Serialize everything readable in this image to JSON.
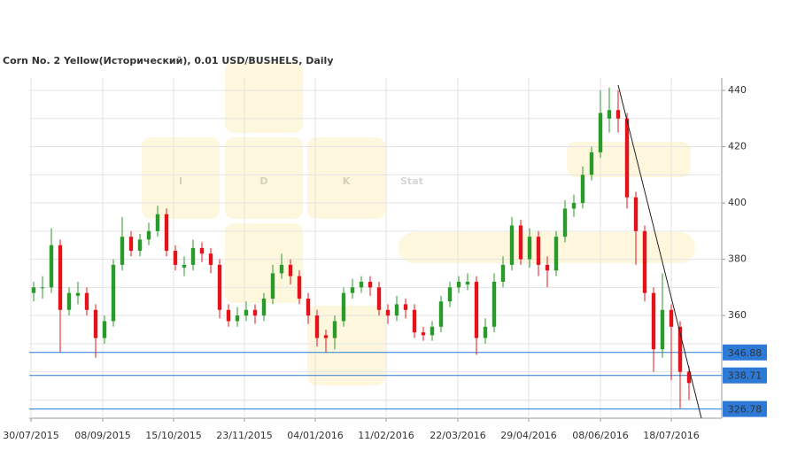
{
  "chart_data": {
    "type": "candlestick",
    "title": "Corn  No. 2 Yellow(Исторический), 0.01 USD/BUSHELS, Daily",
    "watermark_letters": [
      "I",
      "D",
      "K"
    ],
    "watermark_word": "Stat",
    "open": [
      368,
      370,
      370,
      385,
      362,
      367,
      368,
      362,
      352,
      358,
      378,
      388,
      383,
      387,
      390,
      396,
      383,
      377,
      378,
      384,
      382,
      378,
      362,
      358,
      360,
      362,
      360,
      366,
      375,
      378,
      374,
      366,
      360,
      353,
      352,
      358,
      368,
      370,
      372,
      370,
      362,
      360,
      364,
      362,
      354,
      353,
      356,
      365,
      370,
      371,
      372,
      352,
      356,
      372,
      378,
      392,
      380,
      388,
      378,
      376,
      388,
      398,
      400,
      410,
      418,
      430,
      433,
      430,
      402,
      390,
      368,
      348,
      362,
      356,
      340
    ],
    "high": [
      372,
      374,
      391,
      387,
      370,
      372,
      370,
      364,
      360,
      380,
      395,
      390,
      389,
      393,
      399,
      398,
      385,
      381,
      387,
      386,
      384,
      380,
      364,
      363,
      365,
      364,
      368,
      378,
      382,
      380,
      376,
      368,
      362,
      355,
      360,
      370,
      373,
      374,
      374,
      372,
      364,
      367,
      366,
      364,
      356,
      358,
      367,
      372,
      374,
      375,
      374,
      359,
      375,
      381,
      395,
      394,
      391,
      390,
      381,
      390,
      401,
      403,
      413,
      420,
      440,
      441,
      440,
      432,
      404,
      392,
      370,
      375,
      364,
      358,
      342
    ],
    "low": [
      365,
      366,
      368,
      347,
      360,
      364,
      360,
      345,
      350,
      356,
      376,
      381,
      381,
      385,
      388,
      381,
      376,
      374,
      376,
      379,
      375,
      359,
      356,
      356,
      358,
      357,
      358,
      364,
      373,
      371,
      364,
      357,
      349,
      347,
      348,
      356,
      366,
      368,
      367,
      360,
      357,
      358,
      359,
      352,
      351,
      351,
      354,
      363,
      368,
      369,
      346,
      350,
      354,
      370,
      376,
      378,
      377,
      374,
      370,
      374,
      386,
      395,
      398,
      408,
      416,
      425,
      425,
      398,
      378,
      365,
      340,
      345,
      337,
      327,
      330
    ],
    "close": [
      370,
      370,
      385,
      362,
      368,
      368,
      362,
      352,
      358,
      378,
      388,
      383,
      387,
      390,
      396,
      383,
      378,
      378,
      384,
      382,
      378,
      362,
      358,
      360,
      362,
      360,
      366,
      375,
      378,
      374,
      366,
      360,
      352,
      352,
      358,
      368,
      370,
      372,
      370,
      362,
      360,
      364,
      362,
      354,
      353,
      356,
      365,
      370,
      372,
      372,
      352,
      356,
      372,
      378,
      392,
      380,
      388,
      378,
      376,
      388,
      398,
      400,
      410,
      418,
      432,
      433,
      430,
      402,
      390,
      368,
      348,
      362,
      356,
      340,
      336
    ],
    "up_color": "#2a9a2a",
    "down_color": "#e3131b",
    "xlim": [
      0,
      78
    ],
    "xticks": [
      {
        "value": 0.2,
        "label": "30/07/2015"
      },
      {
        "value": 8.3,
        "label": "08/09/2015"
      },
      {
        "value": 16.3,
        "label": "15/10/2015"
      },
      {
        "value": 24.3,
        "label": "23/11/2015"
      },
      {
        "value": 32.3,
        "label": "04/01/2016"
      },
      {
        "value": 40.3,
        "label": "11/02/2016"
      },
      {
        "value": 48.4,
        "label": "22/03/2016"
      },
      {
        "value": 56.4,
        "label": "29/04/2016"
      },
      {
        "value": 64.5,
        "label": "08/06/2016"
      },
      {
        "value": 72.5,
        "label": "18/07/2016"
      }
    ],
    "ylim": [
      323.5,
      443
    ],
    "yticks": [
      360,
      380,
      400,
      420,
      440
    ],
    "grid_yticks": [
      330,
      340,
      350,
      360,
      370,
      380,
      390,
      400,
      410,
      420,
      430,
      440
    ],
    "levels": [
      346.88,
      338.71,
      326.78
    ],
    "level_color": "#2c7ad6",
    "trendline": {
      "x": [
        66.5,
        75.9
      ],
      "y": [
        441.9,
        323.5
      ]
    }
  }
}
